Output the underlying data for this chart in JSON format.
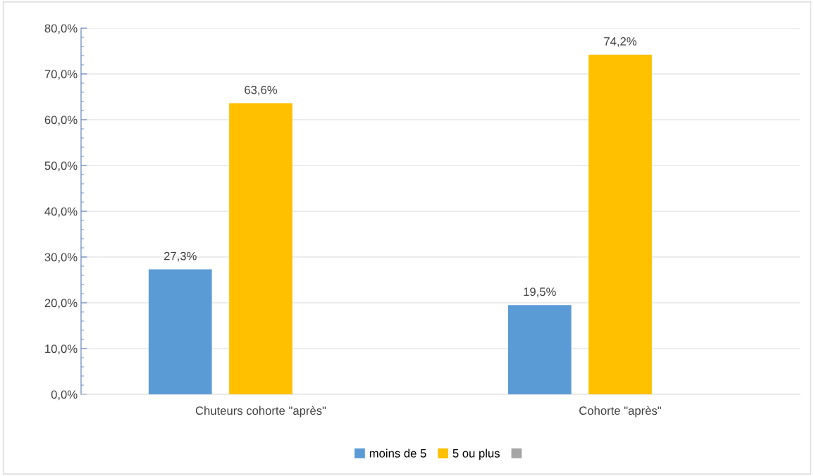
{
  "chart_data": {
    "type": "bar",
    "categories": [
      "Chuteurs cohorte \"après\"",
      "Cohorte \"après\""
    ],
    "series": [
      {
        "name": "moins de 5",
        "color": "#5b9bd5",
        "values": [
          27.3,
          19.5
        ],
        "value_labels": [
          "27,3%",
          "19,5%"
        ]
      },
      {
        "name": "5 ou plus",
        "color": "#ffc000",
        "values": [
          63.6,
          74.2
        ],
        "value_labels": [
          "63,6%",
          "74,2%"
        ]
      },
      {
        "color": "#a5a5a5",
        "values": [
          null,
          null
        ]
      }
    ],
    "ylim": [
      0,
      80
    ],
    "yticks": [
      {
        "value": 0,
        "label": "0,0%"
      },
      {
        "value": 10,
        "label": "10,0%"
      },
      {
        "value": 20,
        "label": "20,0%"
      },
      {
        "value": 30,
        "label": "30,0%"
      },
      {
        "value": 40,
        "label": "40,0%"
      },
      {
        "value": 50,
        "label": "50,0%"
      },
      {
        "value": 60,
        "label": "60,0%"
      },
      {
        "value": 70,
        "label": "70,0%"
      },
      {
        "value": 80,
        "label": "80,0%"
      }
    ],
    "grid": "y",
    "legend": "bottom"
  }
}
